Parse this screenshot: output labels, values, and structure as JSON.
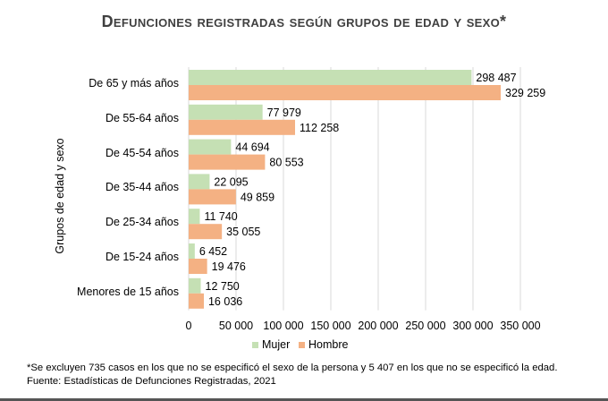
{
  "chart_data": {
    "type": "bar",
    "orientation": "horizontal",
    "title": "Defunciones registradas según grupos de edad y sexo*",
    "ylabel": "Grupos de edad y sexo",
    "xlabel": "",
    "categories": [
      "De 65 y más años",
      "De 55-64 años",
      "De 45-54 años",
      "De 35-44 años",
      "De 25-34 años",
      "De 15-24 años",
      "Menores de 15 años"
    ],
    "series": [
      {
        "name": "Mujer",
        "color": "#c5e0b4",
        "values": [
          298487,
          77979,
          44694,
          22095,
          11740,
          6452,
          12750
        ],
        "labels": [
          "298 487",
          "77 979",
          "44 694",
          "22 095",
          "11 740",
          "6 452",
          "12 750"
        ]
      },
      {
        "name": "Hombre",
        "color": "#f4b183",
        "values": [
          329259,
          112258,
          80553,
          49859,
          35055,
          19476,
          16036
        ],
        "labels": [
          "329 259",
          "112 258",
          "80 553",
          "49 859",
          "35 055",
          "19 476",
          "16 036"
        ]
      }
    ],
    "xlim": [
      0,
      350000
    ],
    "xticks": [
      0,
      50000,
      100000,
      150000,
      200000,
      250000,
      300000,
      350000
    ],
    "xtick_labels": [
      "0",
      "50 000",
      "100 000",
      "150 000",
      "200 000",
      "250 000",
      "300 000",
      "350 000"
    ],
    "grid": true,
    "legend_position": "bottom"
  },
  "footnotes": {
    "note": "*Se excluyen  735 casos en los que no se especificó el sexo de la persona y 5 407 en los que no se especificó la edad.",
    "source": "Fuente:  Estadísticas de Defunciones Registradas, 2021"
  }
}
